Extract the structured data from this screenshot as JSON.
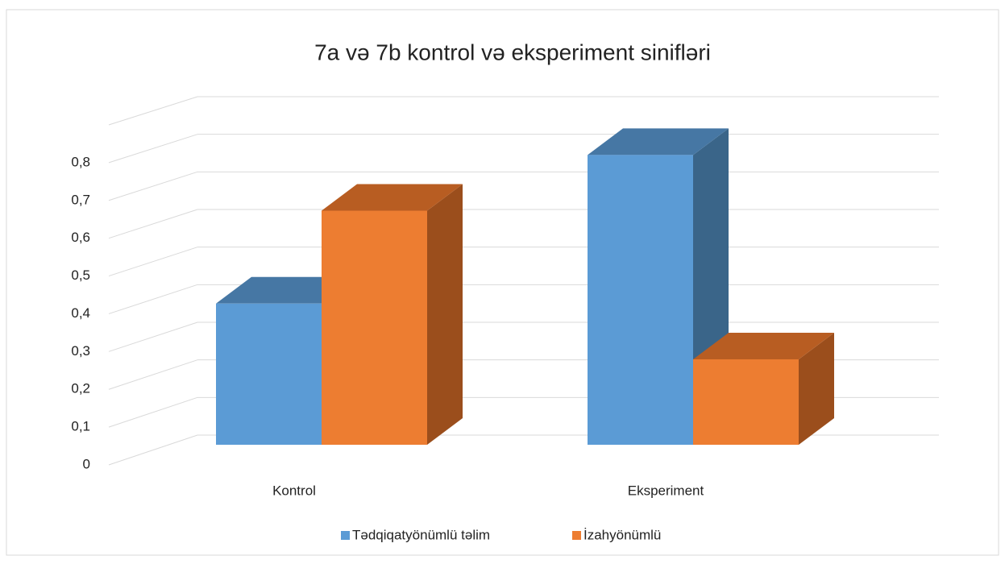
{
  "chart_data": {
    "type": "bar3d",
    "title": "7a və 7b kontrol və eksperiment sinifləri",
    "categories": [
      "Kontrol",
      "Eksperiment"
    ],
    "series": [
      {
        "name": "Tədqiqatyönümlü təlim",
        "color": "#5b9bd5",
        "side_color": "#3a6589",
        "top_color": "#4677a4",
        "values": [
          0.38,
          0.78
        ]
      },
      {
        "name": "İzahyönümlü",
        "color": "#ed7d31",
        "side_color": "#9b4e1c",
        "top_color": "#b85d22",
        "values": [
          0.63,
          0.23
        ]
      }
    ],
    "ylim": [
      0,
      0.9
    ],
    "yticks": [
      0,
      {
        "value": 0.1,
        "label": "0,1"
      },
      {
        "value": 0.2,
        "label": "0,2"
      },
      {
        "value": 0.3,
        "label": "0,3"
      },
      {
        "value": 0.4,
        "label": "0,4"
      },
      {
        "value": 0.5,
        "label": "0,5"
      },
      {
        "value": 0.6,
        "label": "0,6"
      },
      {
        "value": 0.7,
        "label": "0,7"
      },
      {
        "value": 0.8,
        "label": "0,8"
      }
    ],
    "grid": true,
    "legend": "bottom"
  }
}
